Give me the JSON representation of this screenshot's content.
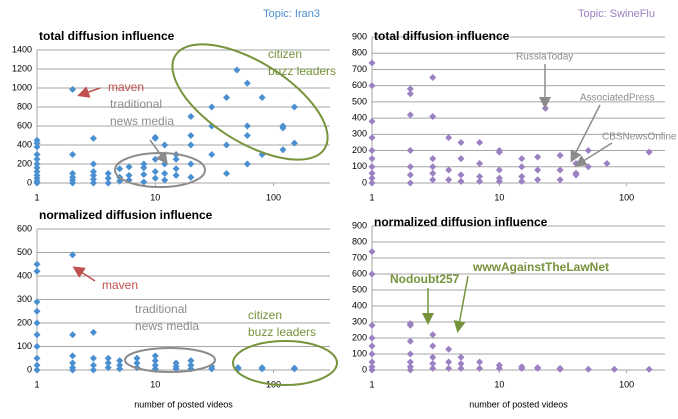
{
  "chart_data": [
    {
      "type": "scatter",
      "topic": "Topic: Iran3",
      "title": "total  diffusion influence",
      "color": "#4a8fd0",
      "xscale": "log",
      "xlim": [
        1,
        300
      ],
      "xticks": [
        1,
        10,
        100
      ],
      "ylim": [
        0,
        1400
      ],
      "yticks": [
        0,
        200,
        400,
        600,
        800,
        1000,
        1200,
        1400
      ],
      "grid": true,
      "x": [
        1,
        1,
        1,
        1,
        1,
        1,
        1,
        1,
        1,
        1,
        1,
        1,
        2,
        2,
        2,
        2,
        2,
        2,
        3,
        3,
        3,
        3,
        3,
        3,
        4,
        4,
        4,
        5,
        5,
        5,
        6,
        6,
        6,
        8,
        8,
        8,
        8,
        10,
        10,
        10,
        10,
        10,
        12,
        12,
        12,
        12,
        15,
        15,
        15,
        15,
        20,
        20,
        20,
        20,
        20,
        49,
        30,
        30,
        30,
        40,
        40,
        40,
        60,
        60,
        60,
        60,
        80,
        80,
        120,
        120,
        120,
        150,
        150
      ],
      "values": [
        0,
        20,
        50,
        80,
        120,
        160,
        200,
        250,
        300,
        380,
        450,
        420,
        0,
        30,
        60,
        100,
        300,
        985,
        0,
        40,
        80,
        120,
        200,
        470,
        0,
        50,
        100,
        20,
        60,
        150,
        30,
        80,
        170,
        10,
        90,
        200,
        160,
        50,
        120,
        480,
        470,
        250,
        30,
        100,
        200,
        400,
        80,
        150,
        300,
        250,
        60,
        200,
        500,
        700,
        400,
        1190,
        300,
        600,
        800,
        100,
        400,
        900,
        200,
        1050,
        600,
        500,
        900,
        300,
        580,
        600,
        350,
        800,
        420
      ],
      "annotations": [
        {
          "lines": [
            "maven"
          ],
          "color": "#c0504d"
        },
        {
          "lines": [
            "traditional",
            "news media"
          ],
          "color": "#8c8c8c"
        },
        {
          "lines": [
            "citizen",
            "buzz leaders"
          ],
          "color": "#77933c"
        }
      ]
    },
    {
      "type": "scatter",
      "topic": "Topic: SwineFlu",
      "title": "total  diffusion influence",
      "color": "#9b80c2",
      "xscale": "log",
      "xlim": [
        1,
        200
      ],
      "xticks": [
        1,
        10,
        100
      ],
      "ylim": [
        0,
        900
      ],
      "yticks": [
        0,
        100,
        200,
        300,
        400,
        500,
        600,
        700,
        800,
        900
      ],
      "grid": true,
      "x": [
        1,
        1,
        1,
        1,
        1,
        1,
        1,
        1,
        1,
        1,
        2,
        2,
        2,
        2,
        2,
        2,
        2,
        3,
        3,
        3,
        3,
        3,
        3,
        4,
        4,
        4,
        5,
        5,
        5,
        5,
        7,
        7,
        7,
        7,
        10,
        10,
        10,
        10,
        10,
        15,
        15,
        15,
        15,
        20,
        20,
        20,
        23,
        30,
        30,
        30,
        40,
        40,
        40,
        50,
        50,
        70,
        150
      ],
      "values": [
        0,
        30,
        60,
        100,
        150,
        200,
        280,
        380,
        600,
        740,
        0,
        50,
        100,
        200,
        420,
        550,
        580,
        20,
        60,
        100,
        150,
        410,
        650,
        20,
        80,
        280,
        10,
        50,
        150,
        250,
        10,
        40,
        120,
        250,
        10,
        30,
        80,
        200,
        190,
        10,
        40,
        100,
        150,
        20,
        80,
        160,
        460,
        20,
        80,
        170,
        50,
        120,
        60,
        100,
        200,
        120,
        190
      ],
      "annotations": [
        {
          "lines": [
            "RussiaToday"
          ],
          "color": "#8c8c8c"
        },
        {
          "lines": [
            "AssociatedPress"
          ],
          "color": "#8c8c8c"
        },
        {
          "lines": [
            "CBSNewsOnline"
          ],
          "color": "#8c8c8c"
        }
      ]
    },
    {
      "type": "scatter",
      "title": "normalized diffusion influence",
      "xlabel": "number of posted videos",
      "color": "#4a8fd0",
      "xscale": "log",
      "xlim": [
        1,
        300
      ],
      "xticks": [
        1,
        10,
        100
      ],
      "ylim": [
        0,
        600
      ],
      "yticks": [
        0,
        100,
        200,
        300,
        400,
        500,
        600
      ],
      "grid": true,
      "x": [
        1,
        1,
        1,
        1,
        1,
        1,
        1,
        1,
        1,
        1,
        2,
        2,
        2,
        2,
        2,
        2,
        3,
        3,
        3,
        3,
        4,
        4,
        4,
        5,
        5,
        5,
        7,
        7,
        7,
        10,
        10,
        10,
        10,
        15,
        15,
        15,
        20,
        20,
        20,
        30,
        30,
        50,
        50,
        80,
        80,
        150,
        150
      ],
      "values": [
        0,
        20,
        50,
        100,
        150,
        200,
        250,
        290,
        420,
        450,
        0,
        10,
        30,
        60,
        150,
        490,
        0,
        20,
        50,
        160,
        10,
        30,
        50,
        5,
        20,
        40,
        10,
        30,
        50,
        5,
        20,
        40,
        60,
        5,
        15,
        30,
        5,
        20,
        40,
        5,
        15,
        5,
        10,
        5,
        10,
        5,
        8
      ],
      "annotations": [
        {
          "lines": [
            "maven"
          ],
          "color": "#c0504d"
        },
        {
          "lines": [
            "traditional",
            "news media"
          ],
          "color": "#8c8c8c"
        },
        {
          "lines": [
            "citizen",
            "buzz leaders"
          ],
          "color": "#77933c"
        }
      ]
    },
    {
      "type": "scatter",
      "title": "normalized diffusion influence",
      "xlabel": "number of posted videos",
      "color": "#9b80c2",
      "xscale": "log",
      "xlim": [
        1,
        200
      ],
      "xticks": [
        1,
        10,
        100
      ],
      "ylim": [
        0,
        900
      ],
      "yticks": [
        0,
        100,
        200,
        300,
        400,
        500,
        600,
        700,
        800,
        900
      ],
      "grid": true,
      "x": [
        1,
        1,
        1,
        1,
        1,
        1,
        1,
        1,
        1,
        2,
        2,
        2,
        2,
        2,
        2,
        2,
        3,
        3,
        3,
        3,
        3,
        4,
        4,
        4,
        5,
        5,
        5,
        7,
        7,
        10,
        10,
        15,
        15,
        20,
        20,
        30,
        30,
        50,
        80,
        150
      ],
      "values": [
        0,
        20,
        50,
        100,
        150,
        200,
        280,
        600,
        740,
        0,
        20,
        50,
        100,
        180,
        280,
        290,
        10,
        40,
        80,
        220,
        150,
        10,
        50,
        130,
        10,
        40,
        80,
        10,
        50,
        10,
        30,
        10,
        20,
        10,
        15,
        5,
        10,
        5,
        5,
        5
      ],
      "annotations": [
        {
          "lines": [
            "Nodoubt257"
          ],
          "color": "#77933c"
        },
        {
          "lines": [
            "wwwAgainstTheLawNet"
          ],
          "color": "#77933c"
        }
      ]
    }
  ]
}
